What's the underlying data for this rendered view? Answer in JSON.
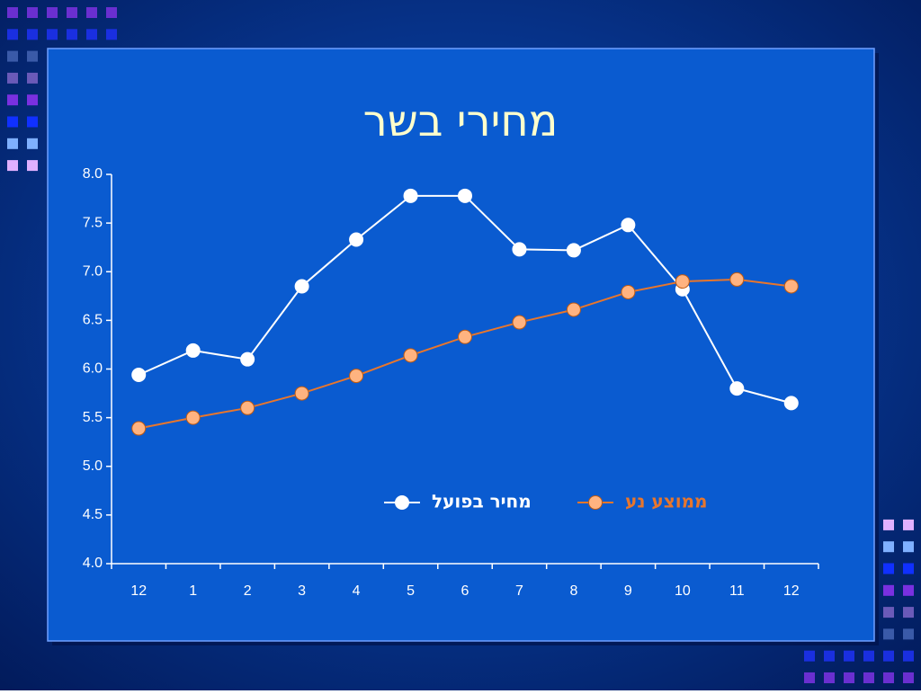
{
  "chart_data": {
    "type": "line",
    "title": "מחירי בשר",
    "categories": [
      "12",
      "1",
      "2",
      "3",
      "4",
      "5",
      "6",
      "7",
      "8",
      "9",
      "10",
      "11",
      "12"
    ],
    "series": [
      {
        "name": "מחיר בפועל",
        "color": "#ffffff",
        "values": [
          5.94,
          6.19,
          6.1,
          6.85,
          7.33,
          7.78,
          7.78,
          7.23,
          7.22,
          7.48,
          6.82,
          5.8,
          5.65
        ]
      },
      {
        "name": "ממוצע נע",
        "color": "#ffb380",
        "line_color": "#e8762c",
        "values": [
          5.39,
          5.5,
          5.6,
          5.75,
          5.93,
          6.14,
          6.33,
          6.48,
          6.61,
          6.79,
          6.9,
          6.92,
          6.85
        ]
      }
    ],
    "ylim": [
      4,
      8
    ],
    "yticks": [
      {
        "value": 4,
        "label": "4.0"
      },
      {
        "value": 4.5,
        "label": "4.5"
      },
      {
        "value": 5,
        "label": "5.0"
      },
      {
        "value": 5.5,
        "label": "5.5"
      },
      {
        "value": 6,
        "label": "6.0"
      },
      {
        "value": 6.5,
        "label": "6.5"
      },
      {
        "value": 7,
        "label": "7.0"
      },
      {
        "value": 7.5,
        "label": "7.5"
      },
      {
        "value": 8,
        "label": "8.0"
      }
    ],
    "grid": false,
    "legend": "center"
  }
}
